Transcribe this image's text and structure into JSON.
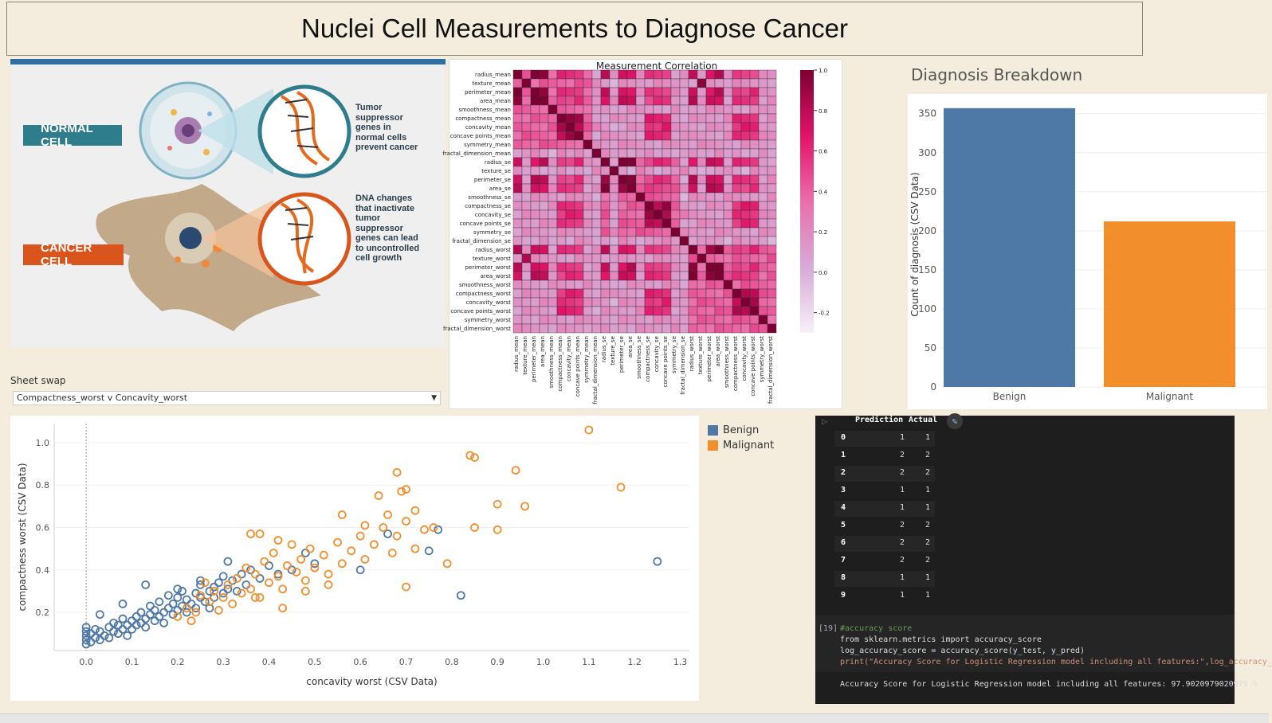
{
  "header": {
    "title": "Nuclei Cell Measurements to Diagnose Cancer"
  },
  "infographic": {
    "normal_label": "NORMAL CELL",
    "cancer_label": "CANCER CELL",
    "normal_text": [
      "Tumor",
      "suppressor",
      "genes in",
      "normal cells",
      "prevent cancer"
    ],
    "cancer_text": [
      "DNA changes",
      "that inactivate",
      "tumor",
      "suppressor",
      "genes can lead",
      "to uncontrolled",
      "cell growth"
    ],
    "colors": {
      "normal": "#2e7d8c",
      "cancer": "#d9551b"
    }
  },
  "heatmap": {
    "title": "Measurement Correlation",
    "features": [
      "radius_mean",
      "texture_mean",
      "perimeter_mean",
      "area_mean",
      "smoothness_mean",
      "compactness_mean",
      "concavity_mean",
      "concave points_mean",
      "symmetry_mean",
      "fractal_dimension_mean",
      "radius_se",
      "texture_se",
      "perimeter_se",
      "area_se",
      "smoothness_se",
      "compactness_se",
      "concavity_se",
      "concave points_se",
      "symmetry_se",
      "fractal_dimension_se",
      "radius_worst",
      "texture_worst",
      "perimeter_worst",
      "area_worst",
      "smoothness_worst",
      "compactness_worst",
      "concavity_worst",
      "concave points_worst",
      "symmetry_worst",
      "fractal_dimension_worst"
    ],
    "colorbar_ticks": [
      "1.0",
      "0.8",
      "0.6",
      "0.4",
      "0.2",
      "0.0",
      "-0.2"
    ]
  },
  "chart_data": [
    {
      "type": "bar",
      "title": "Diagnosis Breakdown",
      "categories": [
        "Benign",
        "Malignant"
      ],
      "values": [
        357,
        212
      ],
      "ylabel": "Count of diagnosis (CSV Data)",
      "yticks": [
        "350",
        "300",
        "250",
        "200",
        "150",
        "100",
        "50",
        "0"
      ],
      "ylim": [
        0,
        365
      ],
      "colors": [
        "#4e79a7",
        "#f28e2b"
      ]
    },
    {
      "type": "scatter",
      "xlabel": "concavity worst (CSV Data)",
      "ylabel": "compactness worst (CSV Data)",
      "xticks": [
        "0.0",
        "0.1",
        "0.2",
        "0.3",
        "0.4",
        "0.5",
        "0.6",
        "0.7",
        "0.8",
        "0.9",
        "1.0",
        "1.1",
        "1.2",
        "1.3"
      ],
      "yticks": [
        "1.0",
        "0.8",
        "0.6",
        "0.4",
        "0.2"
      ],
      "xlim": [
        -0.07,
        1.32
      ],
      "ylim": [
        0.02,
        1.09
      ],
      "legend": [
        "Benign",
        "Malignant"
      ],
      "colors": {
        "Benign": "#4e79a7",
        "Malignant": "#f28e2b"
      },
      "series": [
        {
          "name": "Benign",
          "points": [
            [
              0.0,
              0.05
            ],
            [
              0.0,
              0.07
            ],
            [
              0.0,
              0.09
            ],
            [
              0.0,
              0.11
            ],
            [
              0.0,
              0.13
            ],
            [
              0.01,
              0.06
            ],
            [
              0.01,
              0.1
            ],
            [
              0.02,
              0.08
            ],
            [
              0.02,
              0.12
            ],
            [
              0.03,
              0.07
            ],
            [
              0.03,
              0.11
            ],
            [
              0.04,
              0.09
            ],
            [
              0.05,
              0.13
            ],
            [
              0.05,
              0.08
            ],
            [
              0.06,
              0.11
            ],
            [
              0.06,
              0.15
            ],
            [
              0.07,
              0.1
            ],
            [
              0.07,
              0.14
            ],
            [
              0.08,
              0.12
            ],
            [
              0.08,
              0.17
            ],
            [
              0.09,
              0.09
            ],
            [
              0.09,
              0.14
            ],
            [
              0.1,
              0.16
            ],
            [
              0.1,
              0.12
            ],
            [
              0.11,
              0.18
            ],
            [
              0.11,
              0.14
            ],
            [
              0.12,
              0.15
            ],
            [
              0.12,
              0.2
            ],
            [
              0.13,
              0.13
            ],
            [
              0.13,
              0.17
            ],
            [
              0.14,
              0.19
            ],
            [
              0.14,
              0.23
            ],
            [
              0.15,
              0.16
            ],
            [
              0.15,
              0.21
            ],
            [
              0.16,
              0.18
            ],
            [
              0.16,
              0.25
            ],
            [
              0.17,
              0.2
            ],
            [
              0.17,
              0.15
            ],
            [
              0.18,
              0.22
            ],
            [
              0.18,
              0.28
            ],
            [
              0.19,
              0.19
            ],
            [
              0.19,
              0.24
            ],
            [
              0.2,
              0.21
            ],
            [
              0.2,
              0.27
            ],
            [
              0.21,
              0.23
            ],
            [
              0.21,
              0.3
            ],
            [
              0.22,
              0.2
            ],
            [
              0.22,
              0.26
            ],
            [
              0.23,
              0.24
            ],
            [
              0.24,
              0.29
            ],
            [
              0.24,
              0.22
            ],
            [
              0.25,
              0.27
            ],
            [
              0.25,
              0.33
            ],
            [
              0.26,
              0.25
            ],
            [
              0.27,
              0.3
            ],
            [
              0.27,
              0.22
            ],
            [
              0.28,
              0.32
            ],
            [
              0.28,
              0.27
            ],
            [
              0.29,
              0.34
            ],
            [
              0.3,
              0.29
            ],
            [
              0.3,
              0.37
            ],
            [
              0.31,
              0.31
            ],
            [
              0.32,
              0.35
            ],
            [
              0.33,
              0.3
            ],
            [
              0.34,
              0.38
            ],
            [
              0.35,
              0.33
            ],
            [
              0.36,
              0.4
            ],
            [
              0.38,
              0.36
            ],
            [
              0.4,
              0.42
            ],
            [
              0.42,
              0.38
            ],
            [
              0.45,
              0.4
            ],
            [
              0.48,
              0.48
            ],
            [
              0.5,
              0.43
            ],
            [
              0.6,
              0.4
            ],
            [
              0.03,
              0.19
            ],
            [
              0.08,
              0.24
            ],
            [
              0.13,
              0.33
            ],
            [
              0.2,
              0.31
            ],
            [
              0.25,
              0.35
            ],
            [
              0.31,
              0.44
            ],
            [
              0.66,
              0.57
            ],
            [
              0.75,
              0.49
            ],
            [
              0.77,
              0.59
            ],
            [
              0.82,
              0.28
            ],
            [
              1.25,
              0.44
            ]
          ]
        },
        {
          "name": "Malignant",
          "points": [
            [
              0.2,
              0.18
            ],
            [
              0.22,
              0.22
            ],
            [
              0.24,
              0.2
            ],
            [
              0.25,
              0.28
            ],
            [
              0.26,
              0.34
            ],
            [
              0.27,
              0.25
            ],
            [
              0.28,
              0.3
            ],
            [
              0.29,
              0.21
            ],
            [
              0.3,
              0.27
            ],
            [
              0.31,
              0.33
            ],
            [
              0.32,
              0.24
            ],
            [
              0.33,
              0.36
            ],
            [
              0.34,
              0.29
            ],
            [
              0.35,
              0.41
            ],
            [
              0.36,
              0.31
            ],
            [
              0.37,
              0.38
            ],
            [
              0.38,
              0.27
            ],
            [
              0.39,
              0.44
            ],
            [
              0.4,
              0.34
            ],
            [
              0.41,
              0.48
            ],
            [
              0.42,
              0.37
            ],
            [
              0.43,
              0.31
            ],
            [
              0.44,
              0.42
            ],
            [
              0.45,
              0.52
            ],
            [
              0.46,
              0.39
            ],
            [
              0.47,
              0.45
            ],
            [
              0.48,
              0.35
            ],
            [
              0.49,
              0.5
            ],
            [
              0.5,
              0.41
            ],
            [
              0.52,
              0.47
            ],
            [
              0.53,
              0.38
            ],
            [
              0.55,
              0.53
            ],
            [
              0.56,
              0.43
            ],
            [
              0.58,
              0.49
            ],
            [
              0.6,
              0.56
            ],
            [
              0.61,
              0.45
            ],
            [
              0.63,
              0.52
            ],
            [
              0.65,
              0.6
            ],
            [
              0.67,
              0.48
            ],
            [
              0.68,
              0.56
            ],
            [
              0.7,
              0.63
            ],
            [
              0.72,
              0.5
            ],
            [
              0.74,
              0.59
            ],
            [
              0.56,
              0.66
            ],
            [
              0.61,
              0.61
            ],
            [
              0.64,
              0.75
            ],
            [
              0.66,
              0.66
            ],
            [
              0.68,
              0.86
            ],
            [
              0.69,
              0.77
            ],
            [
              0.7,
              0.78
            ],
            [
              0.72,
              0.68
            ],
            [
              0.76,
              0.6
            ],
            [
              0.79,
              0.43
            ],
            [
              0.7,
              0.32
            ],
            [
              0.36,
              0.57
            ],
            [
              0.38,
              0.57
            ],
            [
              0.42,
              0.54
            ],
            [
              0.84,
              0.94
            ],
            [
              0.85,
              0.93
            ],
            [
              0.94,
              0.87
            ],
            [
              0.9,
              0.71
            ],
            [
              0.96,
              0.7
            ],
            [
              0.85,
              0.6
            ],
            [
              0.9,
              0.59
            ],
            [
              1.1,
              1.06
            ],
            [
              1.17,
              0.79
            ],
            [
              0.48,
              0.3
            ],
            [
              0.53,
              0.33
            ],
            [
              0.37,
              0.27
            ],
            [
              0.43,
              0.22
            ],
            [
              0.23,
              0.16
            ]
          ]
        }
      ]
    }
  ],
  "controls": {
    "sheet_swap_label": "Sheet swap",
    "sheet_swap_value": "Compactness_worst v Concavity_worst"
  },
  "notebook": {
    "table_headers": [
      "Prediction",
      "Actual"
    ],
    "rows": [
      [
        "0",
        "1",
        "1"
      ],
      [
        "1",
        "2",
        "2"
      ],
      [
        "2",
        "2",
        "2"
      ],
      [
        "3",
        "1",
        "1"
      ],
      [
        "4",
        "1",
        "1"
      ],
      [
        "5",
        "2",
        "2"
      ],
      [
        "6",
        "2",
        "2"
      ],
      [
        "7",
        "2",
        "2"
      ],
      [
        "8",
        "1",
        "1"
      ],
      [
        "9",
        "1",
        "1"
      ]
    ],
    "cell_number": "[19]",
    "code_lines": [
      "#accuracy score",
      "from sklearn.metrics import accuracy_score",
      "log_accuracy_score = accuracy_score(y_test, y_pred)",
      "print(\"Accuracy Score for Logistic Regression model including all features:\",log_accuracy_"
    ],
    "output": "Accuracy Score for Logistic Regression model including all features: 97.9020979020979 %"
  }
}
